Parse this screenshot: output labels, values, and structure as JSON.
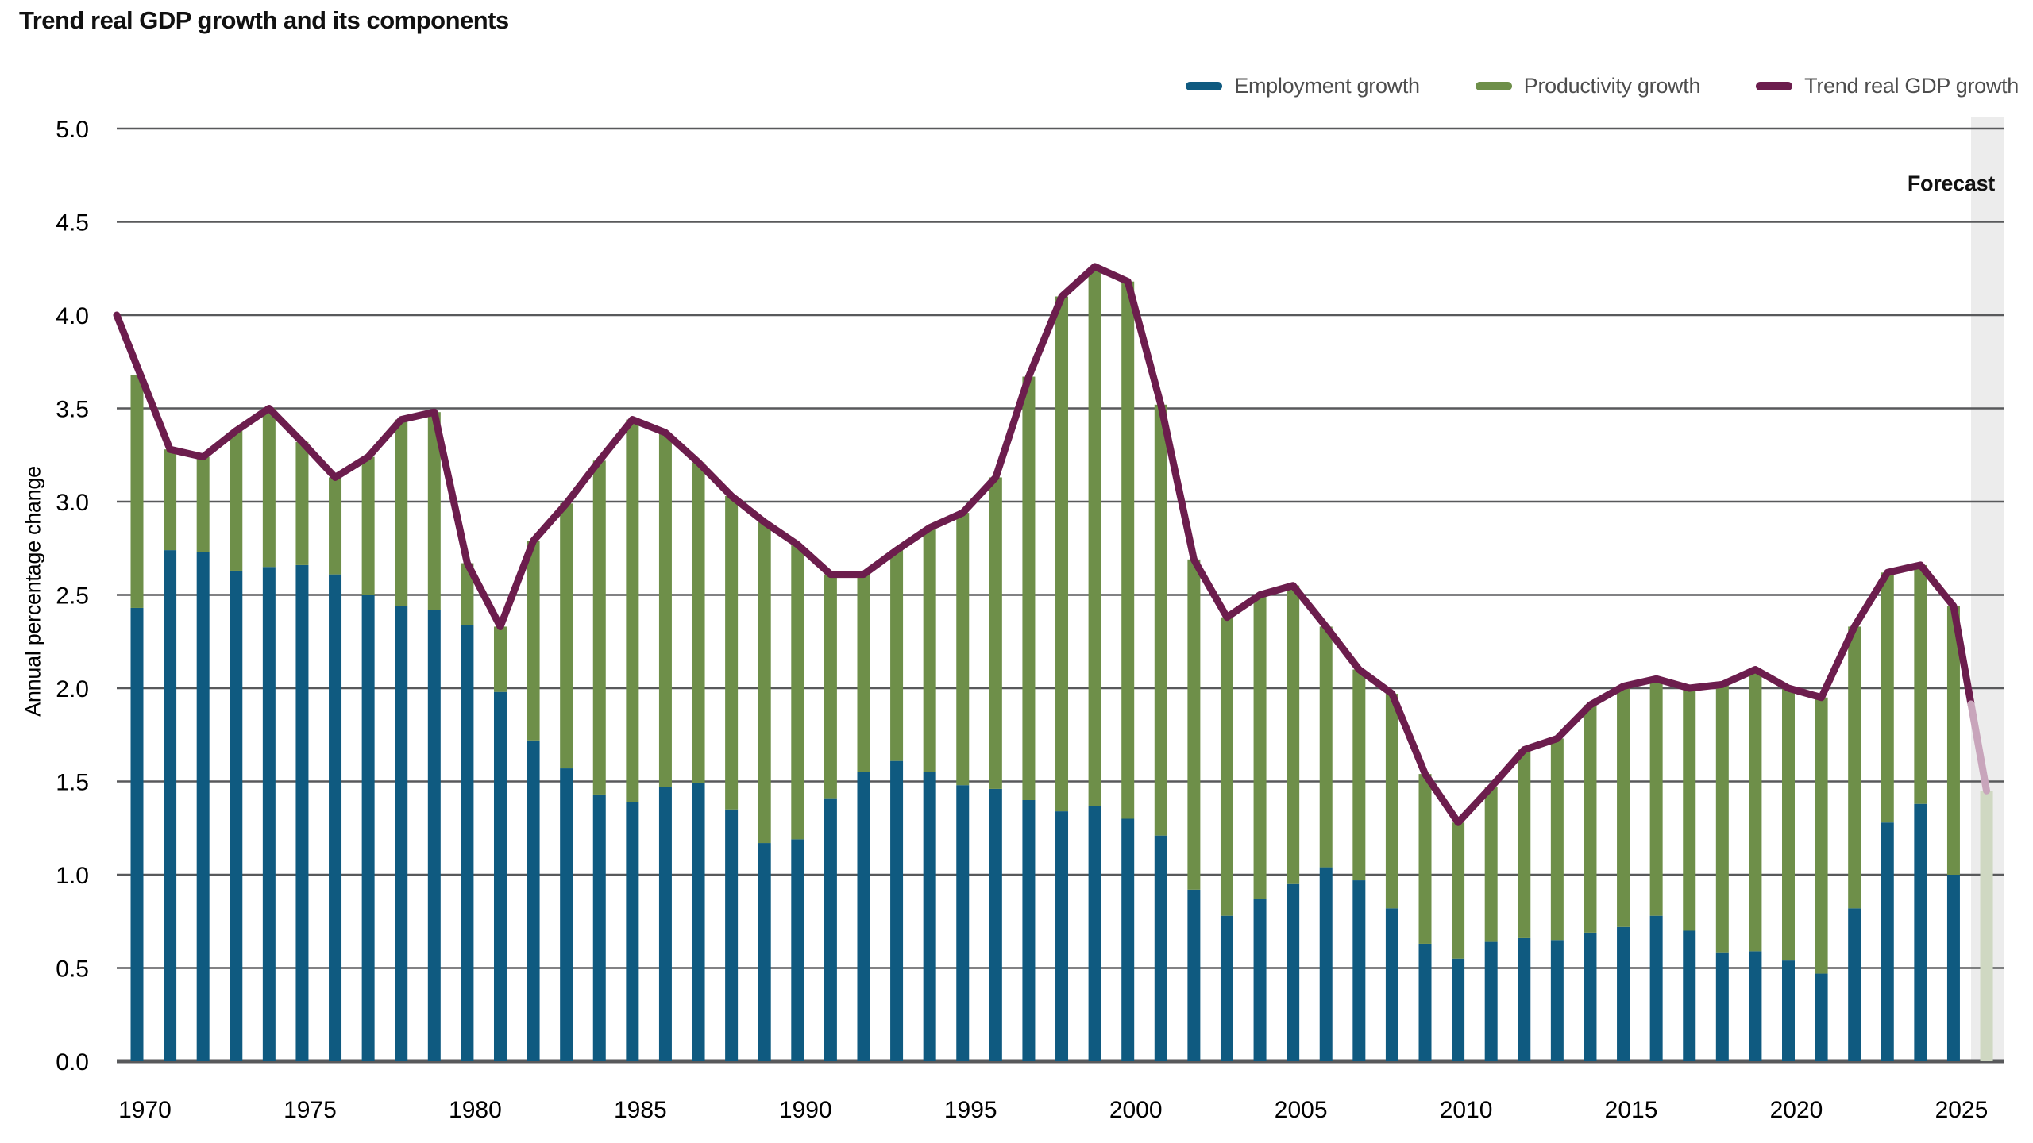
{
  "title": "Trend real GDP growth and its components",
  "forecast_label": "Forecast",
  "legend": [
    {
      "label": "Employment growth",
      "color": "#0f5a80"
    },
    {
      "label": "Productivity growth",
      "color": "#6e8f49"
    },
    {
      "label": "Trend real GDP growth",
      "color": "#6c1d4d"
    }
  ],
  "y_axis": {
    "title": "Annual percentage change"
  },
  "colors": {
    "employment_bar": "#0f5a80",
    "productivity_bar": "#6e8f49",
    "trend_line": "#6c1d4d",
    "trend_line_faded": "#c8a5bb",
    "forecast_bar": "#cfd8c2",
    "forecast_band": "#ececec",
    "gridline": "#58595b",
    "tick_text": "#000000"
  },
  "chart_data": {
    "type": "bar",
    "stacked": true,
    "title": "Trend real GDP growth and its components",
    "ylabel": "Annual percentage change",
    "ylim": [
      0,
      5
    ],
    "ytick_step": 0.5,
    "grid": true,
    "legend_position": "top-right",
    "xticks": [
      1970,
      1975,
      1980,
      1985,
      1990,
      1995,
      2000,
      2005,
      2010,
      2015,
      2020,
      2025
    ],
    "years": [
      1970,
      1971,
      1972,
      1973,
      1974,
      1975,
      1976,
      1977,
      1978,
      1979,
      1980,
      1981,
      1982,
      1983,
      1984,
      1985,
      1986,
      1987,
      1988,
      1989,
      1990,
      1991,
      1992,
      1993,
      1994,
      1995,
      1996,
      1997,
      1998,
      1999,
      2000,
      2001,
      2002,
      2003,
      2004,
      2005,
      2006,
      2007,
      2008,
      2009,
      2010,
      2011,
      2012,
      2013,
      2014,
      2015,
      2016,
      2017,
      2018,
      2019,
      2020,
      2021,
      2022,
      2023,
      2024,
      2025,
      2026
    ],
    "series": [
      {
        "name": "Employment growth",
        "type": "bar",
        "values": [
          2.43,
          2.74,
          2.73,
          2.63,
          2.65,
          2.66,
          2.61,
          2.5,
          2.44,
          2.42,
          2.34,
          1.98,
          1.72,
          1.57,
          1.43,
          1.39,
          1.47,
          1.49,
          1.35,
          1.17,
          1.19,
          1.41,
          1.55,
          1.61,
          1.55,
          1.48,
          1.46,
          1.4,
          1.34,
          1.37,
          1.3,
          1.21,
          0.92,
          0.78,
          0.87,
          0.95,
          1.04,
          0.97,
          0.82,
          0.63,
          0.55,
          0.64,
          0.66,
          0.65,
          0.69,
          0.72,
          0.78,
          0.7,
          0.58,
          0.59,
          0.54,
          0.47,
          0.82,
          1.28,
          1.38,
          1.0,
          0.0
        ]
      },
      {
        "name": "Productivity growth",
        "type": "bar",
        "values": [
          1.25,
          0.54,
          0.51,
          0.75,
          0.85,
          0.66,
          0.52,
          0.74,
          1.0,
          1.06,
          0.33,
          0.35,
          1.07,
          1.42,
          1.79,
          2.05,
          1.9,
          1.72,
          1.68,
          1.72,
          1.58,
          1.2,
          1.06,
          1.13,
          1.31,
          1.46,
          1.67,
          2.27,
          2.76,
          2.89,
          2.88,
          2.31,
          1.77,
          1.6,
          1.63,
          1.6,
          1.29,
          1.13,
          1.15,
          0.91,
          0.73,
          0.83,
          1.01,
          1.08,
          1.22,
          1.29,
          1.27,
          1.3,
          1.44,
          1.51,
          1.46,
          1.48,
          1.51,
          1.34,
          1.28,
          1.44,
          1.45
        ]
      },
      {
        "name": "Trend real GDP growth",
        "type": "line",
        "values": [
          4.0,
          3.28,
          3.24,
          3.38,
          3.5,
          3.32,
          3.13,
          3.24,
          3.44,
          3.48,
          2.67,
          2.33,
          2.79,
          2.99,
          3.22,
          3.44,
          3.37,
          3.21,
          3.03,
          2.89,
          2.77,
          2.61,
          2.61,
          2.74,
          2.86,
          2.94,
          3.13,
          3.67,
          4.1,
          4.26,
          4.18,
          3.52,
          2.69,
          2.38,
          2.5,
          2.55,
          2.33,
          2.1,
          1.97,
          1.54,
          1.28,
          1.47,
          1.67,
          1.73,
          1.91,
          2.01,
          2.05,
          2.0,
          2.02,
          2.1,
          2.0,
          1.95,
          2.33,
          2.62,
          2.66,
          2.44,
          1.45
        ]
      }
    ],
    "forecast": {
      "start_year": 2026,
      "label": "Forecast"
    }
  }
}
